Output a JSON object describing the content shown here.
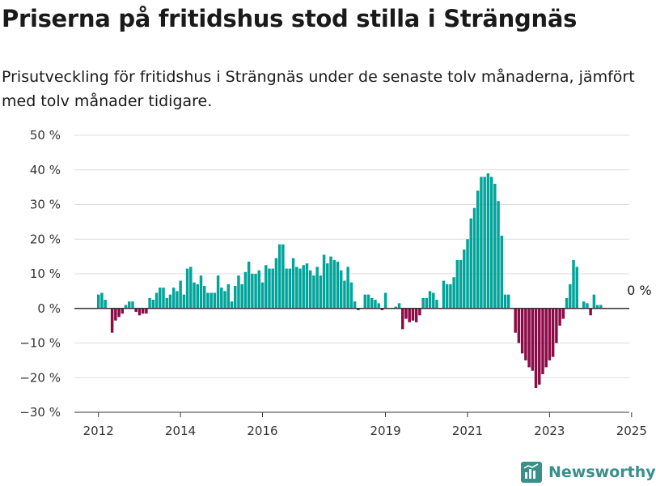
{
  "title": "Priserna på fritidshus stod stilla i Strängnäs",
  "subtitle": "Prisutveckling för fritidshus i Strängnäs under de senaste tolv månaderna, jämfört med tolv månader tidigare.",
  "brand": {
    "name": "Newsworthy",
    "icon": "newsworthy-logo-icon"
  },
  "colors": {
    "positive": "#00a49a",
    "negative": "#8c0a47",
    "zero_line": "#333333",
    "grid": "#dddddd"
  },
  "chart_data": {
    "type": "bar",
    "x_start": "2012-01",
    "x_step": "month",
    "ylim": [
      -30,
      50
    ],
    "y_ticks": [
      50,
      40,
      30,
      20,
      10,
      0,
      -10,
      -20,
      -30
    ],
    "y_tick_labels": [
      "50 %",
      "40 %",
      "30 %",
      "20 %",
      "10 %",
      "0 %",
      "−10 %",
      "−20 %",
      "−30 %"
    ],
    "x_ticks": [
      {
        "month": "2012-01",
        "label": "2012"
      },
      {
        "month": "2014-01",
        "label": "2014"
      },
      {
        "month": "2016-01",
        "label": "2016"
      },
      {
        "month": "2019-01",
        "label": "2019"
      },
      {
        "month": "2021-01",
        "label": "2021"
      },
      {
        "month": "2023-01",
        "label": "2023"
      },
      {
        "month": "2025-01",
        "label": "2025"
      }
    ],
    "grid": true,
    "legend": "none",
    "values": [
      4,
      4.5,
      2.5,
      null,
      -7,
      -3.5,
      -2.5,
      -1.5,
      1,
      2,
      2,
      -1,
      -2,
      -1.5,
      -1.5,
      3,
      2.5,
      4.5,
      6,
      6,
      3,
      4,
      6,
      5,
      8,
      4,
      11.5,
      12,
      7.5,
      7,
      9.5,
      6.5,
      4.5,
      4.5,
      4.5,
      9.5,
      6,
      5,
      7,
      2,
      6.5,
      9.5,
      7,
      10.5,
      13.5,
      10,
      10,
      11,
      7.5,
      12.5,
      11.5,
      11.5,
      14.5,
      18.5,
      18.5,
      11.5,
      11.5,
      14.5,
      12,
      11.5,
      12.5,
      13,
      11,
      9.5,
      12,
      9.5,
      15.5,
      13,
      15,
      14,
      13.5,
      11,
      8,
      12,
      7.5,
      2,
      -0.5,
      null,
      4,
      4,
      3,
      2.5,
      1.5,
      -0.5,
      4.5,
      null,
      null,
      0.5,
      1.5,
      -6,
      -3,
      -4,
      -3.5,
      -4,
      -2,
      3,
      3,
      5,
      4.5,
      2.5,
      null,
      8,
      7,
      7,
      9,
      14,
      14,
      17,
      20,
      26,
      29,
      34,
      38,
      38,
      39,
      38,
      36,
      31,
      21,
      4,
      4,
      null,
      -7,
      -10,
      -13,
      -15,
      -17,
      -18,
      -23,
      -22,
      -19,
      -17,
      -15,
      -14,
      -10,
      -5,
      -3,
      3,
      7,
      14,
      12,
      null,
      2,
      1.5,
      -2,
      4,
      1,
      1,
      0
    ],
    "data_labels": [
      {
        "index": 156,
        "text": "0 %"
      }
    ]
  }
}
